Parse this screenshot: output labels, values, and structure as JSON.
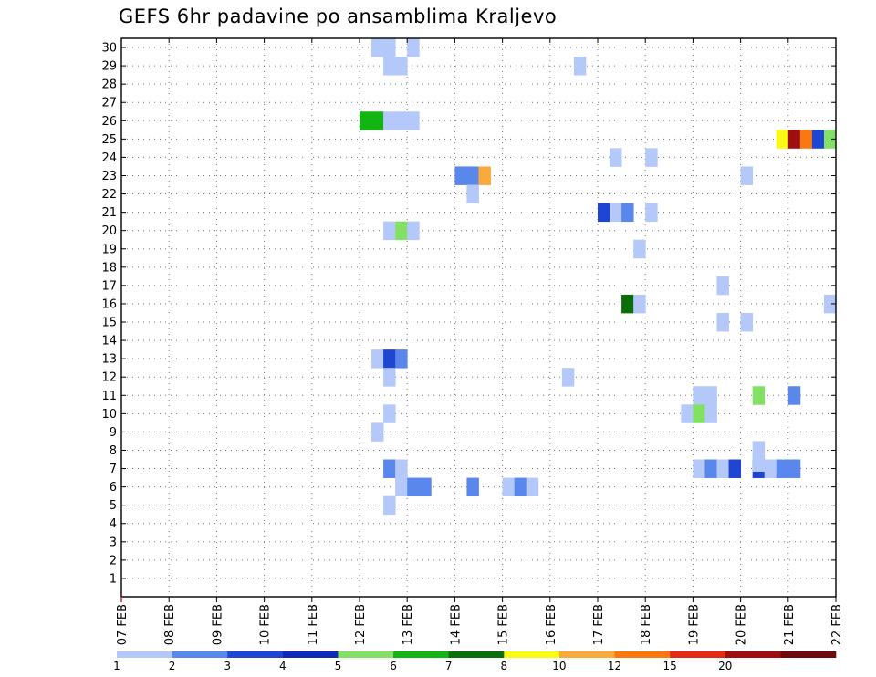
{
  "chart_data": {
    "type": "heatmap",
    "title": "GEFS 6hr padavine po ansamblima Kraljevo",
    "x_tick_labels": [
      "07 FEB",
      "08 FEB",
      "09 FEB",
      "10 FEB",
      "11 FEB",
      "12 FEB",
      "13 FEB",
      "14 FEB",
      "15 FEB",
      "16 FEB",
      "17 FEB",
      "18 FEB",
      "19 FEB",
      "20 FEB",
      "21 FEB",
      "22 FEB"
    ],
    "x_range_days": [
      0,
      15
    ],
    "y_tick_labels": [
      1,
      2,
      3,
      4,
      5,
      6,
      7,
      8,
      9,
      10,
      11,
      12,
      13,
      14,
      15,
      16,
      17,
      18,
      19,
      20,
      21,
      22,
      23,
      24,
      25,
      26,
      27,
      28,
      29,
      30
    ],
    "y_range": [
      0,
      30.5
    ],
    "grid": "dotted",
    "step_days": 0.25,
    "colorbar": {
      "labels": [
        "1",
        "2",
        "3",
        "4",
        "5",
        "6",
        "7",
        "8",
        "10",
        "12",
        "15",
        "20"
      ],
      "colors": [
        "#b4c8fa",
        "#5a87eb",
        "#1e46d2",
        "#0f2ab4",
        "#82e164",
        "#14b414",
        "#0a6e0a",
        "#fafa14",
        "#faaa3c",
        "#fa780f",
        "#e12d14",
        "#a00f0f",
        "#6e0a0a"
      ]
    },
    "cells": [
      {
        "x": 5.25,
        "y": 30,
        "c": 0
      },
      {
        "x": 5.5,
        "y": 30,
        "c": 0
      },
      {
        "x": 6.0,
        "y": 30,
        "c": 0
      },
      {
        "x": 5.5,
        "y": 29,
        "c": 0
      },
      {
        "x": 5.75,
        "y": 29,
        "c": 0
      },
      {
        "x": 9.5,
        "y": 29,
        "c": 0
      },
      {
        "x": 5.0,
        "y": 26,
        "c": 5
      },
      {
        "x": 5.25,
        "y": 26,
        "c": 5
      },
      {
        "x": 5.5,
        "y": 26,
        "c": 0
      },
      {
        "x": 5.75,
        "y": 26,
        "c": 0
      },
      {
        "x": 6.0,
        "y": 26,
        "c": 0
      },
      {
        "x": 13.75,
        "y": 25,
        "c": 7
      },
      {
        "x": 14.0,
        "y": 25,
        "c": 11
      },
      {
        "x": 14.25,
        "y": 25,
        "c": 9
      },
      {
        "x": 14.5,
        "y": 25,
        "c": 2
      },
      {
        "x": 14.75,
        "y": 25,
        "c": 4
      },
      {
        "x": 10.25,
        "y": 24,
        "c": 0
      },
      {
        "x": 11.0,
        "y": 24,
        "c": 0
      },
      {
        "x": 7.0,
        "y": 23,
        "c": 1
      },
      {
        "x": 7.25,
        "y": 23,
        "c": 1
      },
      {
        "x": 7.5,
        "y": 23,
        "c": 8
      },
      {
        "x": 13.0,
        "y": 23,
        "c": 0
      },
      {
        "x": 7.25,
        "y": 22,
        "c": 0
      },
      {
        "x": 10.0,
        "y": 21,
        "c": 2
      },
      {
        "x": 10.25,
        "y": 21,
        "c": 0
      },
      {
        "x": 10.5,
        "y": 21,
        "c": 1
      },
      {
        "x": 11.0,
        "y": 21,
        "c": 0
      },
      {
        "x": 5.5,
        "y": 20,
        "c": 0
      },
      {
        "x": 5.75,
        "y": 20,
        "c": 4
      },
      {
        "x": 6.0,
        "y": 20,
        "c": 0
      },
      {
        "x": 10.75,
        "y": 19,
        "c": 0
      },
      {
        "x": 12.5,
        "y": 17,
        "c": 0
      },
      {
        "x": 10.5,
        "y": 16,
        "c": 6
      },
      {
        "x": 10.75,
        "y": 16,
        "c": 0
      },
      {
        "x": 14.75,
        "y": 16,
        "c": 0
      },
      {
        "x": 12.5,
        "y": 15,
        "c": 0
      },
      {
        "x": 13.0,
        "y": 15,
        "c": 0
      },
      {
        "x": 5.25,
        "y": 13,
        "c": 0
      },
      {
        "x": 5.5,
        "y": 13,
        "c": 2
      },
      {
        "x": 5.75,
        "y": 13,
        "c": 1
      },
      {
        "x": 5.5,
        "y": 12,
        "c": 0
      },
      {
        "x": 9.25,
        "y": 12,
        "c": 0
      },
      {
        "x": 12.0,
        "y": 11,
        "c": 0
      },
      {
        "x": 12.25,
        "y": 11,
        "c": 0
      },
      {
        "x": 13.25,
        "y": 11,
        "c": 4
      },
      {
        "x": 14.0,
        "y": 11,
        "c": 1
      },
      {
        "x": 5.5,
        "y": 10,
        "c": 0
      },
      {
        "x": 11.75,
        "y": 10,
        "c": 0
      },
      {
        "x": 12.0,
        "y": 10,
        "c": 4
      },
      {
        "x": 12.25,
        "y": 10,
        "c": 0
      },
      {
        "x": 5.25,
        "y": 9,
        "c": 0
      },
      {
        "x": 13.25,
        "y": 8,
        "c": 0
      },
      {
        "x": 5.5,
        "y": 7,
        "c": 1
      },
      {
        "x": 5.75,
        "y": 7,
        "c": 0
      },
      {
        "x": 12.0,
        "y": 7,
        "c": 0
      },
      {
        "x": 12.25,
        "y": 7,
        "c": 1
      },
      {
        "x": 12.5,
        "y": 7,
        "c": 0
      },
      {
        "x": 12.75,
        "y": 7,
        "c": 2
      },
      {
        "x": 13.25,
        "y": 7,
        "c": 2
      },
      {
        "x": 13.5,
        "y": 7,
        "c": 0
      },
      {
        "x": 13.75,
        "y": 7,
        "c": 1
      },
      {
        "x": 14.0,
        "y": 7,
        "c": 1
      },
      {
        "x": 5.75,
        "y": 6,
        "c": 0
      },
      {
        "x": 6.0,
        "y": 6,
        "c": 1
      },
      {
        "x": 6.25,
        "y": 6,
        "c": 1
      },
      {
        "x": 7.25,
        "y": 6,
        "c": 1
      },
      {
        "x": 8.0,
        "y": 6,
        "c": 0
      },
      {
        "x": 8.25,
        "y": 6,
        "c": 1
      },
      {
        "x": 8.5,
        "y": 6,
        "c": 0
      },
      {
        "x": 5.5,
        "y": 5,
        "c": 0
      },
      {
        "x": 13.25,
        "y": 7.35,
        "c": 0
      }
    ]
  }
}
